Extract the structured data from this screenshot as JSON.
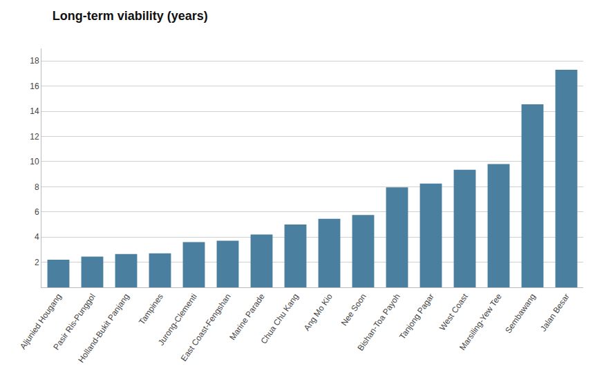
{
  "chart_data": {
    "type": "bar",
    "title": "Long-term viability (years)",
    "categories": [
      "Aljunied Hougang",
      "Pasir Ris-Punggol",
      "Holland-Bukit Panjang",
      "Tampines",
      "Jurong-Clementi",
      "East Coast-Fengshan",
      "Marine Parade",
      "Chua Chu Kang",
      "Ang Mo Kio",
      "Nee Soon",
      "Bishan-Toa Payoh",
      "Tanjong Pagar",
      "West Coast",
      "Marsiling-Yew Tee",
      "Sembawang",
      "Jalan Besar"
    ],
    "values": [
      2.2,
      2.45,
      2.65,
      2.7,
      3.6,
      3.7,
      4.2,
      5.0,
      5.45,
      5.75,
      7.95,
      8.25,
      9.35,
      9.8,
      14.55,
      17.3
    ],
    "color": "#4a7fa0",
    "ylim": [
      0,
      19
    ],
    "yticks": [
      2,
      4,
      6,
      8,
      10,
      12,
      14,
      16,
      18
    ],
    "grid": true
  }
}
